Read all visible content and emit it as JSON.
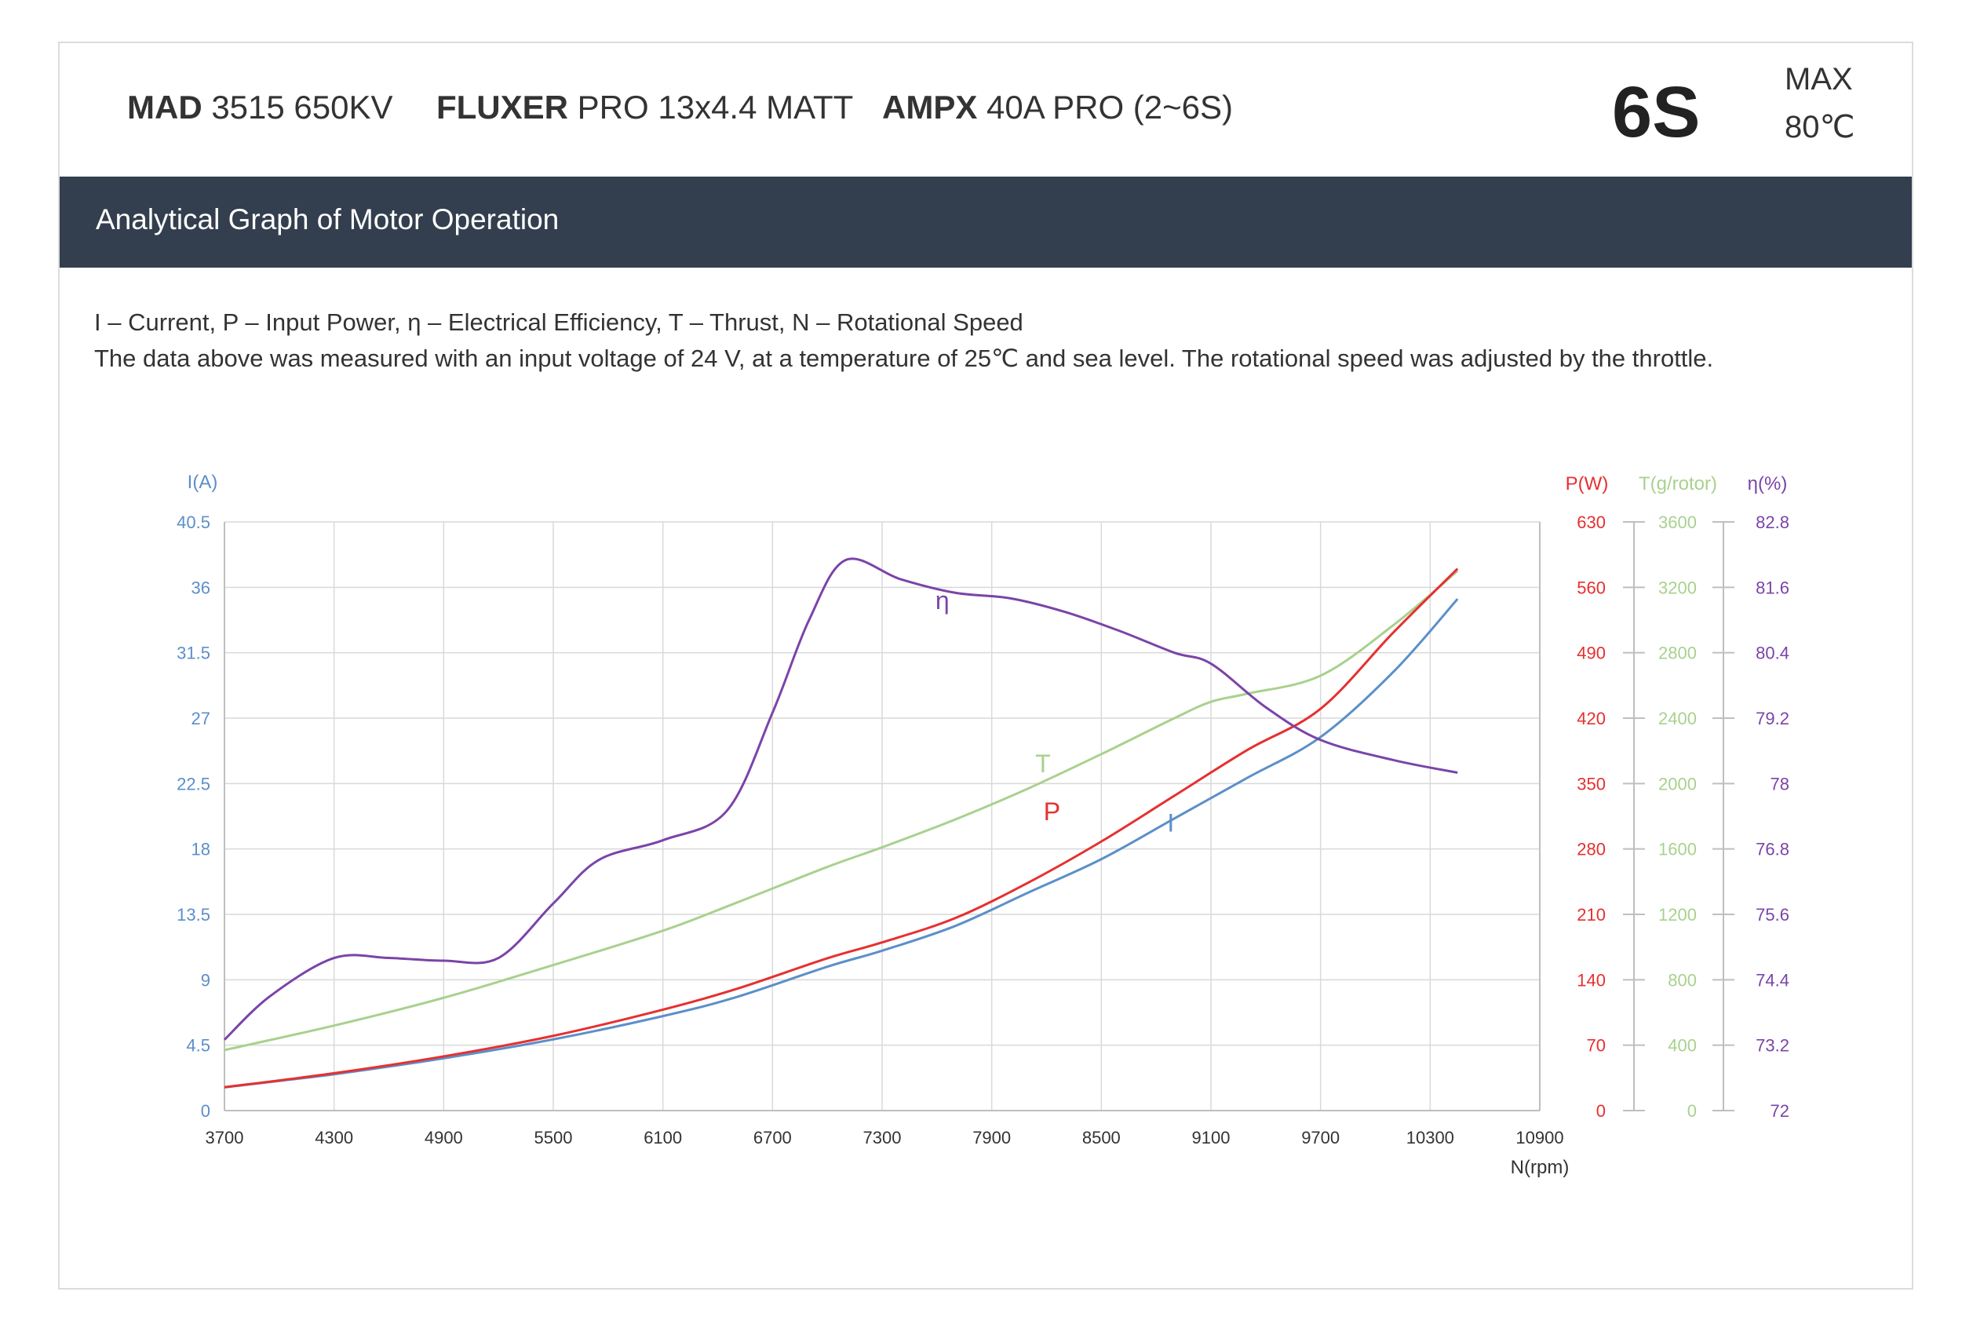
{
  "header": {
    "products": [
      {
        "brand": "MAD",
        "model": "3515 650KV"
      },
      {
        "brand": "FLUXER",
        "model": "PRO 13x4.4 MATT"
      },
      {
        "brand": "AMPX",
        "model": "40A PRO (2~6S)"
      }
    ],
    "cells": "6S",
    "max_label": "MAX",
    "max_temp": "80℃"
  },
  "band_title": "Analytical Graph of Motor Operation",
  "legend_text": "I – Current, P – Input Power, η – Electrical Efficiency, T – Thrust,   N – Rotational Speed",
  "note_text": "The data above was measured with an input voltage of 24 V, at a temperature of 25℃ and sea level. The rotational speed was adjusted by the throttle.",
  "colors": {
    "I": "#5b8fc9",
    "P": "#e63030",
    "T": "#a9d18e",
    "eta": "#7b44a8",
    "grid": "#d9d9d9",
    "axis": "#bfbfbf",
    "xtick": "#333333"
  },
  "chart_data": {
    "type": "line",
    "xlabel": "N(rpm)",
    "x_ticks": [
      3700,
      4300,
      4900,
      5500,
      6100,
      6700,
      7300,
      7900,
      8500,
      9100,
      9700,
      10300,
      10900
    ],
    "xlim": [
      3700,
      10900
    ],
    "grid": true,
    "axes": {
      "I": {
        "label": "I(A)",
        "side": "left",
        "ticks": [
          "0",
          "4.5",
          "9",
          "13.5",
          "18",
          "22.5",
          "27",
          "31.5",
          "36",
          "40.5"
        ],
        "ylim": [
          0,
          40.5
        ]
      },
      "P": {
        "label": "P(W)",
        "side": "right",
        "ticks": [
          "0",
          "70",
          "140",
          "210",
          "280",
          "350",
          "420",
          "490",
          "560",
          "630"
        ],
        "ylim": [
          0,
          630
        ]
      },
      "T": {
        "label": "T(g/rotor)",
        "side": "right",
        "ticks": [
          "0",
          "400",
          "800",
          "1200",
          "1600",
          "2000",
          "2400",
          "2800",
          "3200",
          "3600"
        ],
        "ylim": [
          0,
          3600
        ]
      },
      "eta": {
        "label": "η(%)",
        "side": "right",
        "ticks": [
          "72",
          "73.2",
          "74.4",
          "75.6",
          "76.8",
          "78",
          "79.2",
          "80.4",
          "81.6",
          "82.8"
        ],
        "ylim": [
          72,
          82.8
        ]
      }
    },
    "series": [
      {
        "name": "I",
        "axis": "I",
        "label_at": [
          8880,
          19.2
        ],
        "x": [
          3700,
          4300,
          4900,
          5500,
          6100,
          6500,
          7000,
          7300,
          7700,
          8100,
          8500,
          8900,
          9300,
          9700,
          10100,
          10450
        ],
        "y": [
          1.6,
          2.5,
          3.6,
          4.9,
          6.5,
          7.8,
          9.9,
          11.0,
          12.7,
          15.0,
          17.3,
          20.1,
          22.9,
          25.7,
          30.2,
          35.2
        ]
      },
      {
        "name": "P",
        "axis": "P",
        "label_at": [
          8230,
          311
        ],
        "x": [
          3700,
          4300,
          4900,
          5500,
          6100,
          6500,
          7000,
          7300,
          7700,
          8100,
          8500,
          8900,
          9300,
          9700,
          10100,
          10450
        ],
        "y": [
          25,
          40,
          58,
          80,
          108,
          130,
          163,
          180,
          206,
          244,
          288,
          337,
          386,
          430,
          512,
          580
        ]
      },
      {
        "name": "T",
        "axis": "T",
        "label_at": [
          8180,
          2070
        ],
        "x": [
          3700,
          4300,
          4900,
          5500,
          6100,
          6500,
          7000,
          7300,
          7700,
          8100,
          8500,
          8900,
          9100,
          9300,
          9700,
          10100,
          10450
        ],
        "y": [
          370,
          520,
          690,
          890,
          1100,
          1270,
          1490,
          1610,
          1780,
          1970,
          2180,
          2400,
          2500,
          2550,
          2660,
          2970,
          3300
        ]
      },
      {
        "name": "η",
        "axis": "eta",
        "label_at": [
          7630,
          81.2
        ],
        "x": [
          3700,
          3950,
          4300,
          4600,
          4900,
          5200,
          5500,
          5750,
          6100,
          6450,
          6700,
          6900,
          7100,
          7400,
          7700,
          8000,
          8300,
          8600,
          8900,
          9100,
          9400,
          9700,
          10100,
          10450
        ],
        "y": [
          73.3,
          74.1,
          74.8,
          74.8,
          74.75,
          74.8,
          75.8,
          76.6,
          76.96,
          77.5,
          79.3,
          81.0,
          82.1,
          81.75,
          81.5,
          81.4,
          81.15,
          80.8,
          80.4,
          80.2,
          79.4,
          78.8,
          78.43,
          78.2
        ]
      }
    ]
  }
}
